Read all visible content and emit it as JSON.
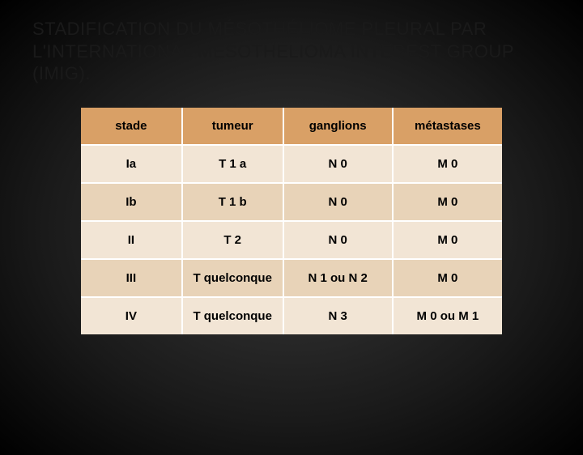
{
  "title": "STADIFICATION DU MÉSOTHÉLIOME PLEURAL PAR L'INTERNATIONAL MESOTHELIOMA INTEREST GROUP (IMIG).",
  "table": {
    "columns": [
      "stade",
      "tumeur",
      "ganglions",
      "métastases"
    ],
    "rows": [
      [
        "Ia",
        "T 1 a",
        "N 0",
        "M 0"
      ],
      [
        "Ib",
        "T 1 b",
        "N 0",
        "M 0"
      ],
      [
        "II",
        "T 2",
        "N 0",
        "M 0"
      ],
      [
        "III",
        "T quelconque",
        "N 1 ou N 2",
        "M 0"
      ],
      [
        "IV",
        "T quelconque",
        "N 3",
        "M 0 ou M 1"
      ]
    ],
    "header_bg": "#d9a066",
    "row_odd_bg": "#f2e5d5",
    "row_even_bg": "#e8d3b8",
    "border_color": "#ffffff",
    "text_color": "#000000",
    "fontsize_header": 15,
    "fontsize_cell": 15
  },
  "background": {
    "gradient_center": "#3a3a3a",
    "gradient_mid": "#1a1a1a",
    "gradient_edge": "#000000"
  },
  "title_color": "#1a1a1a",
  "title_fontsize": 22
}
